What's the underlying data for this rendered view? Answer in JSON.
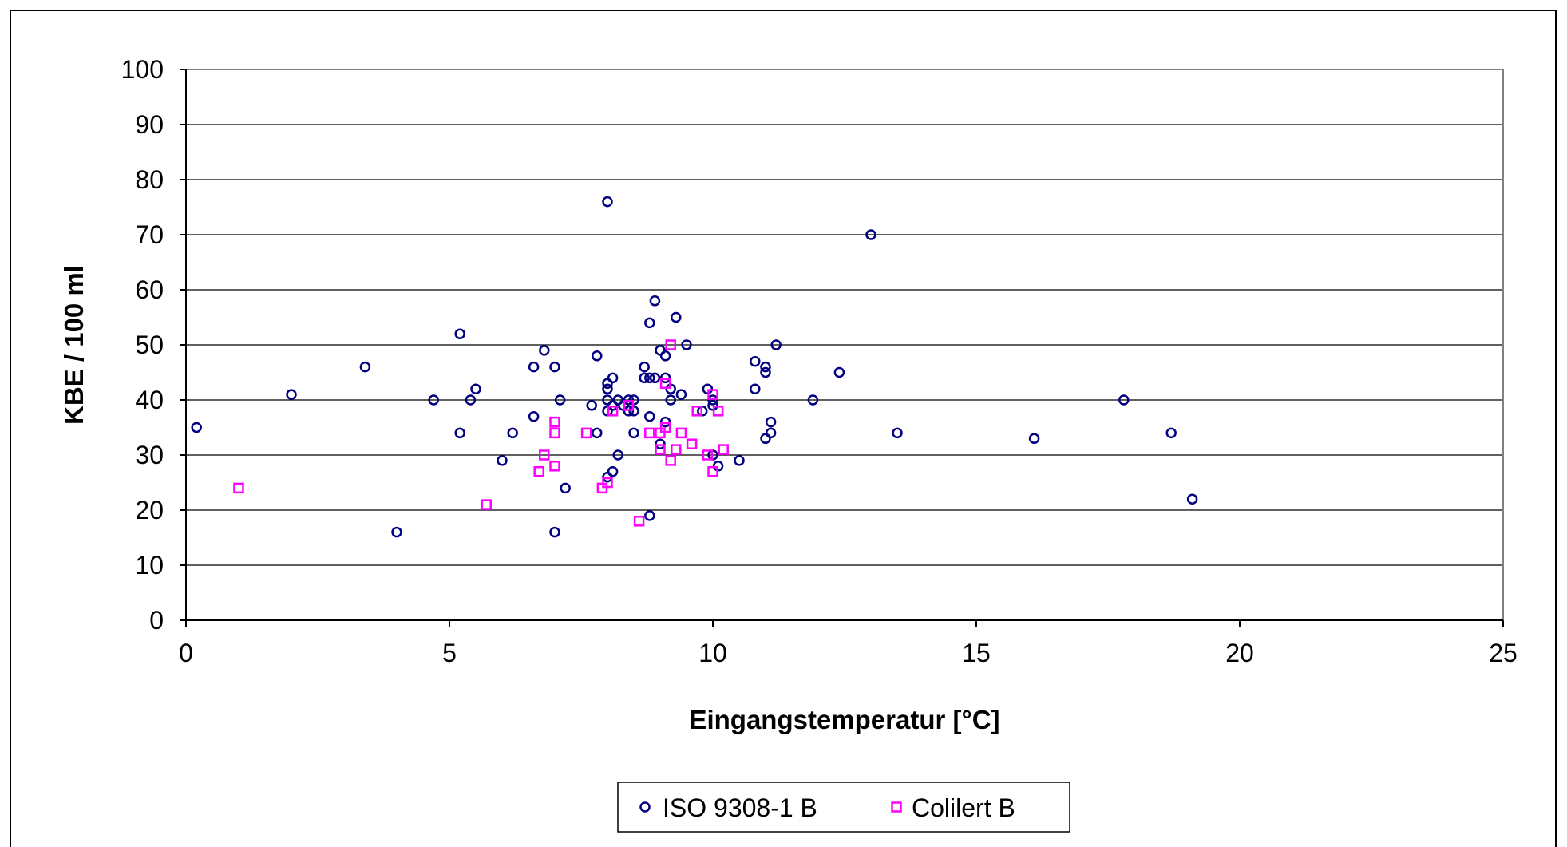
{
  "chart_data": {
    "type": "scatter",
    "title": "",
    "xlabel": "Eingangstemperatur [°C]",
    "ylabel": "KBE / 100 ml",
    "xlim": [
      0,
      25
    ],
    "ylim": [
      0,
      100
    ],
    "xticks": [
      0,
      5,
      10,
      15,
      20,
      25
    ],
    "yticks": [
      0,
      10,
      20,
      30,
      40,
      50,
      60,
      70,
      80,
      90,
      100
    ],
    "grid": "horizontal",
    "legend": "bottom-center",
    "series": [
      {
        "name": "ISO 9308-1 B",
        "marker": "circle",
        "color": "#000080",
        "points": [
          [
            0.2,
            35
          ],
          [
            2.0,
            41
          ],
          [
            3.4,
            46
          ],
          [
            4.0,
            16
          ],
          [
            4.7,
            40
          ],
          [
            5.2,
            52
          ],
          [
            5.2,
            34
          ],
          [
            5.4,
            40
          ],
          [
            5.5,
            42
          ],
          [
            6.0,
            29
          ],
          [
            6.2,
            34
          ],
          [
            6.6,
            46
          ],
          [
            6.6,
            37
          ],
          [
            6.8,
            49
          ],
          [
            7.0,
            46
          ],
          [
            7.0,
            16
          ],
          [
            7.1,
            40
          ],
          [
            7.2,
            24
          ],
          [
            7.7,
            39
          ],
          [
            7.8,
            48
          ],
          [
            7.8,
            34
          ],
          [
            8.0,
            76
          ],
          [
            8.0,
            43
          ],
          [
            8.0,
            42
          ],
          [
            8.0,
            40
          ],
          [
            8.0,
            38
          ],
          [
            8.0,
            26
          ],
          [
            8.1,
            44
          ],
          [
            8.1,
            39
          ],
          [
            8.1,
            27
          ],
          [
            8.2,
            40
          ],
          [
            8.2,
            30
          ],
          [
            8.3,
            39
          ],
          [
            8.4,
            40
          ],
          [
            8.4,
            38
          ],
          [
            8.5,
            40
          ],
          [
            8.5,
            38
          ],
          [
            8.5,
            34
          ],
          [
            8.7,
            46
          ],
          [
            8.7,
            44
          ],
          [
            8.8,
            54
          ],
          [
            8.8,
            44
          ],
          [
            8.8,
            37
          ],
          [
            8.8,
            19
          ],
          [
            8.9,
            58
          ],
          [
            8.9,
            44
          ],
          [
            9.0,
            49
          ],
          [
            9.0,
            32
          ],
          [
            9.1,
            48
          ],
          [
            9.1,
            44
          ],
          [
            9.1,
            36
          ],
          [
            9.2,
            42
          ],
          [
            9.2,
            40
          ],
          [
            9.3,
            55
          ],
          [
            9.4,
            41
          ],
          [
            9.5,
            50
          ],
          [
            9.8,
            38
          ],
          [
            9.9,
            42
          ],
          [
            10.0,
            40
          ],
          [
            10.0,
            39
          ],
          [
            10.0,
            30
          ],
          [
            10.1,
            28
          ],
          [
            10.5,
            29
          ],
          [
            10.8,
            47
          ],
          [
            10.8,
            42
          ],
          [
            11.0,
            46
          ],
          [
            11.0,
            45
          ],
          [
            11.0,
            33
          ],
          [
            11.1,
            36
          ],
          [
            11.1,
            34
          ],
          [
            11.2,
            50
          ],
          [
            11.9,
            40
          ],
          [
            12.4,
            45
          ],
          [
            13.0,
            70
          ],
          [
            13.5,
            34
          ],
          [
            16.1,
            33
          ],
          [
            17.8,
            40
          ],
          [
            18.7,
            34
          ],
          [
            19.1,
            22
          ]
        ]
      },
      {
        "name": "Colilert B",
        "marker": "square",
        "color": "#FF00FF",
        "points": [
          [
            1.0,
            24
          ],
          [
            5.7,
            21
          ],
          [
            6.7,
            27
          ],
          [
            6.8,
            30
          ],
          [
            7.0,
            36
          ],
          [
            7.0,
            34
          ],
          [
            7.0,
            28
          ],
          [
            7.6,
            34
          ],
          [
            7.9,
            24
          ],
          [
            8.0,
            25
          ],
          [
            8.1,
            38
          ],
          [
            8.4,
            39
          ],
          [
            8.6,
            18
          ],
          [
            8.8,
            34
          ],
          [
            9.0,
            34
          ],
          [
            9.0,
            31
          ],
          [
            9.1,
            43
          ],
          [
            9.1,
            35
          ],
          [
            9.2,
            50
          ],
          [
            9.2,
            29
          ],
          [
            9.3,
            31
          ],
          [
            9.4,
            34
          ],
          [
            9.6,
            32
          ],
          [
            9.7,
            38
          ],
          [
            9.9,
            30
          ],
          [
            10.0,
            41
          ],
          [
            10.0,
            27
          ],
          [
            10.1,
            38
          ],
          [
            10.2,
            31
          ]
        ]
      }
    ]
  }
}
